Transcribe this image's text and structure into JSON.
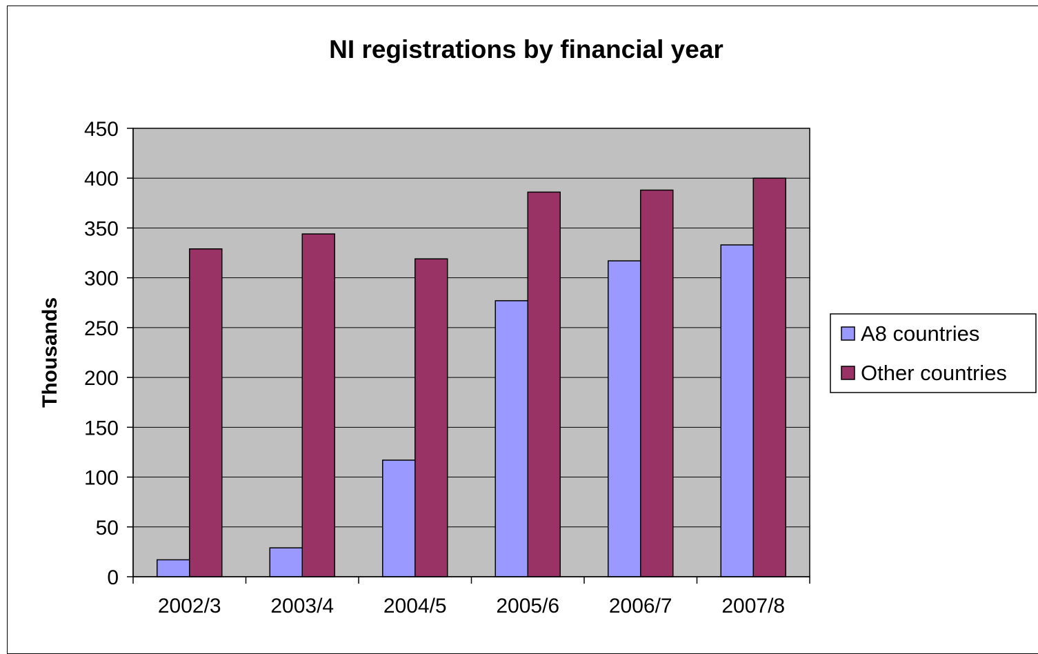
{
  "chart_data": {
    "type": "bar",
    "title": "NI registrations by financial year",
    "xlabel": "",
    "ylabel": "Thousands",
    "categories": [
      "2002/3",
      "2003/4",
      "2004/5",
      "2005/6",
      "2006/7",
      "2007/8"
    ],
    "series": [
      {
        "name": "A8 countries",
        "values": [
          17,
          29,
          117,
          277,
          317,
          333
        ],
        "color": "#9999FF"
      },
      {
        "name": "Other countries",
        "values": [
          329,
          344,
          319,
          386,
          388,
          400
        ],
        "color": "#993366"
      }
    ],
    "ylim": [
      0,
      450
    ],
    "yticks": [
      0,
      50,
      100,
      150,
      200,
      250,
      300,
      350,
      400,
      450
    ],
    "grid": true,
    "plot_background": "#C0C0C0",
    "legend_position": "right"
  }
}
